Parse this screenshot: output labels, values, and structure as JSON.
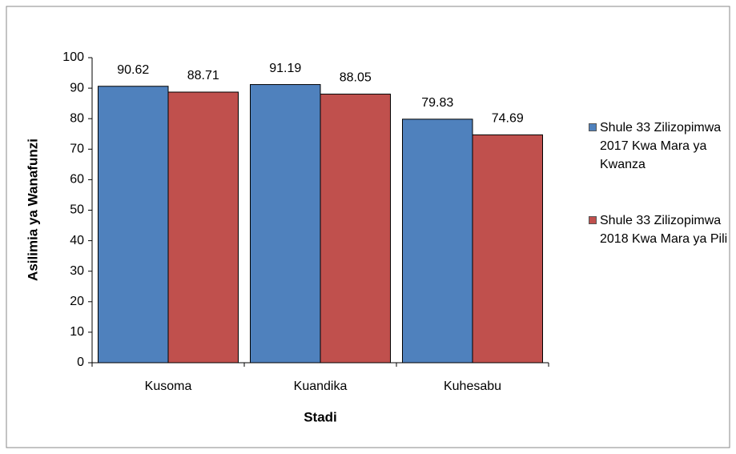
{
  "chart_data": {
    "type": "bar",
    "x_label": "Stadi",
    "y_label": "Asilimia ya Wanafunzi",
    "categories": [
      "Kusoma",
      "Kuandika",
      "Kuhesabu"
    ],
    "series": [
      {
        "name": "Shule 33 Zilizopimwa 2017 Kwa Mara ya Kwanza",
        "color": "#4f81bd",
        "values": [
          90.62,
          91.19,
          79.83
        ]
      },
      {
        "name": "Shule 33 Zilizopimwa 2018 Kwa Mara ya Pili",
        "color": "#c0504d",
        "values": [
          88.71,
          88.05,
          74.69
        ]
      }
    ],
    "ylim": [
      0,
      100
    ],
    "yticks": [
      0,
      10,
      20,
      30,
      40,
      50,
      60,
      70,
      80,
      90,
      100
    ],
    "grid": false,
    "legend": "right"
  }
}
